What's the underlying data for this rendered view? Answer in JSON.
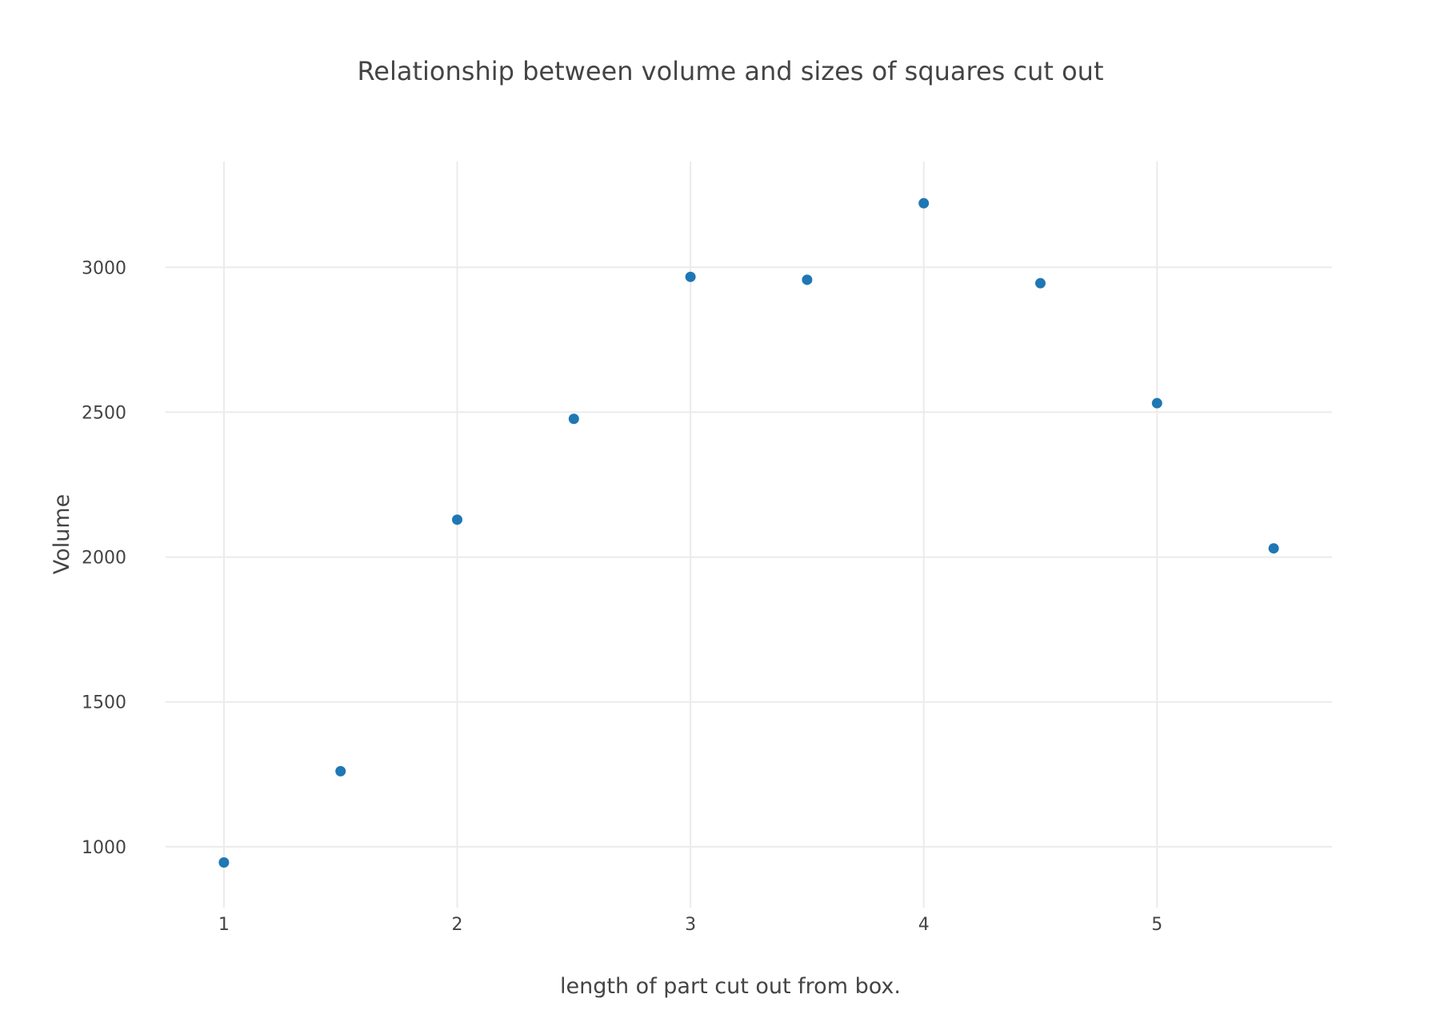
{
  "chart_data": {
    "type": "scatter",
    "title": "Relationship between volume and sizes of squares cut out",
    "xlabel": "length of part cut out from box.",
    "ylabel": "Volume",
    "xlim": [
      0.75,
      5.75
    ],
    "ylim": [
      790,
      3365
    ],
    "x_ticks": [
      1,
      2,
      3,
      4,
      5
    ],
    "x_tick_labels": [
      "1",
      "2",
      "3",
      "4",
      "5"
    ],
    "y_ticks": [
      1000,
      1500,
      2000,
      2500,
      3000
    ],
    "y_tick_labels": [
      "1000",
      "1500",
      "2000",
      "2500",
      "3000"
    ],
    "grid": true,
    "legend": "none",
    "series": [
      {
        "color": "#1f77b4",
        "points": [
          {
            "x": 1,
            "y": 946
          },
          {
            "x": 1.5,
            "y": 1261
          },
          {
            "x": 2,
            "y": 2129
          },
          {
            "x": 2.5,
            "y": 2477
          },
          {
            "x": 3,
            "y": 2967
          },
          {
            "x": 3.5,
            "y": 2957
          },
          {
            "x": 4,
            "y": 3221
          },
          {
            "x": 4.5,
            "y": 2945
          },
          {
            "x": 5,
            "y": 2531
          },
          {
            "x": 5.5,
            "y": 2030
          }
        ]
      }
    ]
  }
}
